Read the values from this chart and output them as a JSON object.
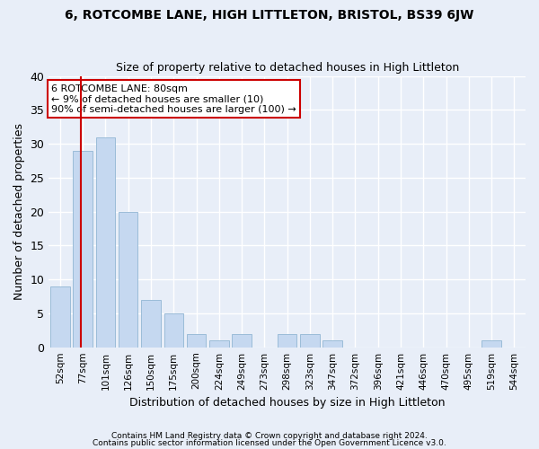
{
  "title": "6, ROTCOMBE LANE, HIGH LITTLETON, BRISTOL, BS39 6JW",
  "subtitle": "Size of property relative to detached houses in High Littleton",
  "xlabel": "Distribution of detached houses by size in High Littleton",
  "ylabel": "Number of detached properties",
  "footnote1": "Contains HM Land Registry data © Crown copyright and database right 2024.",
  "footnote2": "Contains public sector information licensed under the Open Government Licence v3.0.",
  "categories": [
    "52sqm",
    "77sqm",
    "101sqm",
    "126sqm",
    "150sqm",
    "175sqm",
    "200sqm",
    "224sqm",
    "249sqm",
    "273sqm",
    "298sqm",
    "323sqm",
    "347sqm",
    "372sqm",
    "396sqm",
    "421sqm",
    "446sqm",
    "470sqm",
    "495sqm",
    "519sqm",
    "544sqm"
  ],
  "values": [
    9,
    29,
    31,
    20,
    7,
    5,
    2,
    1,
    2,
    0,
    2,
    2,
    1,
    0,
    0,
    0,
    0,
    0,
    0,
    1,
    0
  ],
  "bar_color": "#c5d8f0",
  "bar_edge_color": "#9bbcd8",
  "background_color": "#e8eef8",
  "grid_color": "#ffffff",
  "vline_color": "#cc0000",
  "vline_x": 0.925,
  "annotation_text": "6 ROTCOMBE LANE: 80sqm\n← 9% of detached houses are smaller (10)\n90% of semi-detached houses are larger (100) →",
  "annotation_box_color": "#ffffff",
  "annotation_box_edge_color": "#cc0000",
  "ylim": [
    0,
    40
  ],
  "yticks": [
    0,
    5,
    10,
    15,
    20,
    25,
    30,
    35,
    40
  ],
  "title_fontsize": 10,
  "subtitle_fontsize": 9,
  "footnote_fontsize": 6.5,
  "annotation_fontsize": 8
}
